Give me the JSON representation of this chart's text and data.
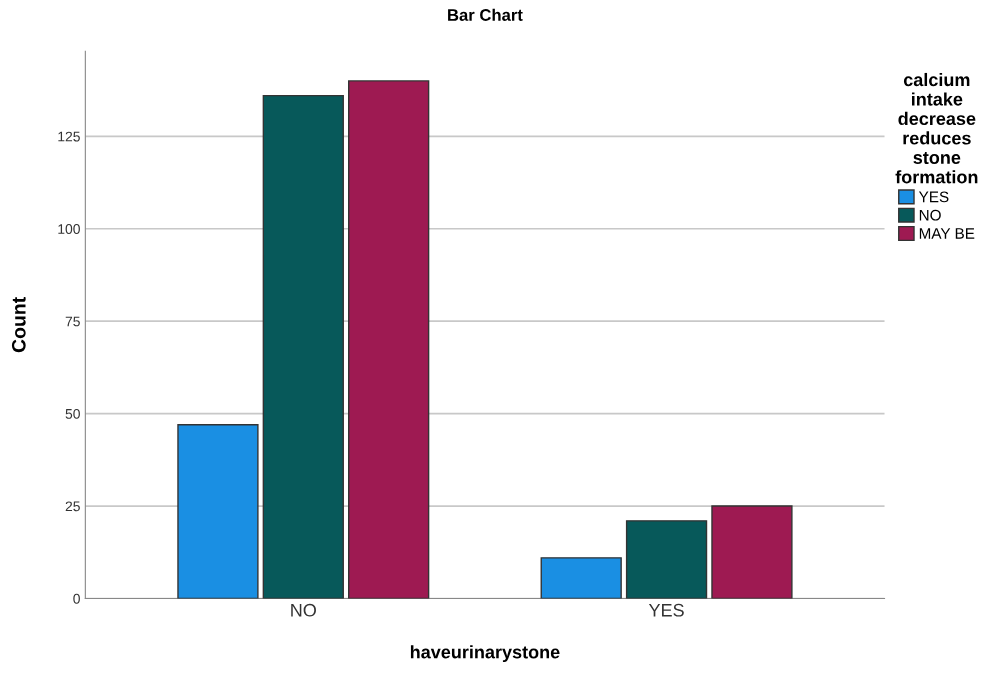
{
  "chart_data": {
    "type": "bar",
    "title": "Bar Chart",
    "xlabel": "haveurinarystone",
    "ylabel": "Count",
    "legend_title": "calcium\nintake\ndecrease\nreduces\nstone\nformation",
    "categories": [
      "NO",
      "YES"
    ],
    "series": [
      {
        "name": "YES",
        "color": "#1a8fe3",
        "values": [
          47,
          11
        ]
      },
      {
        "name": "NO",
        "color": "#07595a",
        "values": [
          136,
          21
        ]
      },
      {
        "name": "MAY BE",
        "color": "#9e1a52",
        "values": [
          140,
          25
        ]
      }
    ],
    "ylim": [
      0,
      148
    ],
    "yticks": [
      0,
      25,
      50,
      75,
      100,
      125
    ],
    "grid": "y",
    "legend": "top right"
  }
}
